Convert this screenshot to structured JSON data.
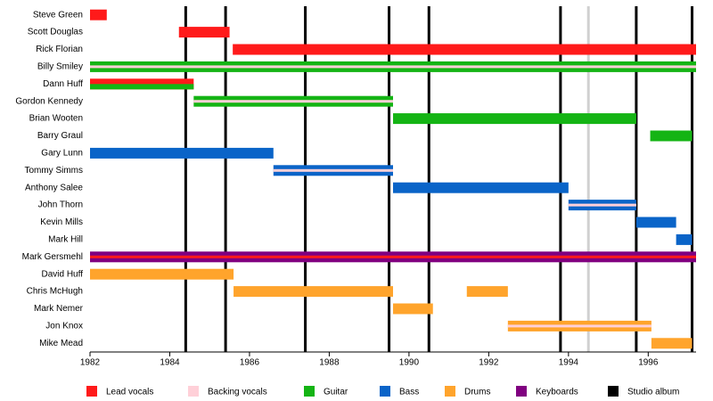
{
  "chart_data": {
    "type": "timeline",
    "xlim": [
      1982,
      1997.2
    ],
    "xticks": [
      1982,
      1984,
      1986,
      1988,
      1990,
      1992,
      1994,
      1996
    ],
    "roles": [
      {
        "name": "Lead vocals",
        "color": "#ff1a1a"
      },
      {
        "name": "Backing vocals",
        "color": "#ffd0d8"
      },
      {
        "name": "Guitar",
        "color": "#14b414"
      },
      {
        "name": "Bass",
        "color": "#0a64c8"
      },
      {
        "name": "Drums",
        "color": "#ffa42c"
      },
      {
        "name": "Keyboards",
        "color": "#800080"
      },
      {
        "name": "Studio album",
        "color": "#000000"
      }
    ],
    "albums": [
      1984.4,
      1985.4,
      1987.4,
      1989.5,
      1990.5,
      1993.8,
      1995.7,
      1997.1
    ],
    "other_releases": {
      "color": "#d0d0d0",
      "values": [
        1994.5
      ]
    },
    "members": [
      {
        "name": "Steve Green",
        "periods": [
          {
            "start": 1982,
            "end": 1982.42,
            "roles": [
              "Lead vocals"
            ]
          }
        ]
      },
      {
        "name": "Scott Douglas",
        "periods": [
          {
            "start": 1984.23,
            "end": 1985.5,
            "roles": [
              "Lead vocals"
            ]
          }
        ]
      },
      {
        "name": "Rick Florian",
        "periods": [
          {
            "start": 1985.58,
            "end": 1997.2,
            "roles": [
              "Lead vocals"
            ]
          }
        ]
      },
      {
        "name": "Billy Smiley",
        "periods": [
          {
            "start": 1982,
            "end": 1997.2,
            "roles": [
              "Guitar",
              "Backing vocals"
            ]
          }
        ]
      },
      {
        "name": "Dann Huff",
        "periods": [
          {
            "start": 1982,
            "end": 1984.6,
            "roles": [
              "Lead vocals",
              "Guitar"
            ]
          }
        ]
      },
      {
        "name": "Gordon Kennedy",
        "periods": [
          {
            "start": 1984.6,
            "end": 1989.6,
            "roles": [
              "Guitar",
              "Backing vocals"
            ]
          }
        ]
      },
      {
        "name": "Brian Wooten",
        "periods": [
          {
            "start": 1989.6,
            "end": 1995.7,
            "roles": [
              "Guitar"
            ]
          }
        ]
      },
      {
        "name": "Barry Graul",
        "periods": [
          {
            "start": 1996.05,
            "end": 1997.1,
            "roles": [
              "Guitar"
            ]
          }
        ]
      },
      {
        "name": "Gary Lunn",
        "periods": [
          {
            "start": 1982,
            "end": 1986.6,
            "roles": [
              "Bass"
            ]
          }
        ]
      },
      {
        "name": "Tommy Simms",
        "periods": [
          {
            "start": 1986.6,
            "end": 1989.6,
            "roles": [
              "Bass",
              "Backing vocals"
            ]
          }
        ]
      },
      {
        "name": "Anthony Salee",
        "periods": [
          {
            "start": 1989.6,
            "end": 1994,
            "roles": [
              "Bass"
            ]
          }
        ]
      },
      {
        "name": "John Thorn",
        "periods": [
          {
            "start": 1994,
            "end": 1995.7,
            "roles": [
              "Bass",
              "Backing vocals"
            ]
          }
        ]
      },
      {
        "name": "Kevin Mills",
        "periods": [
          {
            "start": 1995.7,
            "end": 1996.7,
            "roles": [
              "Bass"
            ]
          }
        ]
      },
      {
        "name": "Mark Hill",
        "periods": [
          {
            "start": 1996.7,
            "end": 1997.1,
            "roles": [
              "Bass"
            ]
          }
        ]
      },
      {
        "name": "Mark Gersmehl",
        "periods": [
          {
            "start": 1982,
            "end": 1997.2,
            "roles": [
              "Keyboards",
              "Lead vocals"
            ]
          }
        ]
      },
      {
        "name": "David Huff",
        "periods": [
          {
            "start": 1982,
            "end": 1985.6,
            "roles": [
              "Drums"
            ]
          }
        ]
      },
      {
        "name": "Chris McHugh",
        "periods": [
          {
            "start": 1985.6,
            "end": 1989.6,
            "roles": [
              "Drums"
            ]
          },
          {
            "start": 1991.45,
            "end": 1992.48,
            "roles": [
              "Drums"
            ]
          }
        ]
      },
      {
        "name": "Mark Nemer",
        "periods": [
          {
            "start": 1989.6,
            "end": 1990.6,
            "roles": [
              "Drums"
            ]
          }
        ]
      },
      {
        "name": "Jon Knox",
        "periods": [
          {
            "start": 1992.48,
            "end": 1996.08,
            "roles": [
              "Drums",
              "Backing vocals"
            ]
          }
        ]
      },
      {
        "name": "Mike Mead",
        "periods": [
          {
            "start": 1996.08,
            "end": 1997.1,
            "roles": [
              "Drums"
            ]
          }
        ]
      }
    ]
  }
}
